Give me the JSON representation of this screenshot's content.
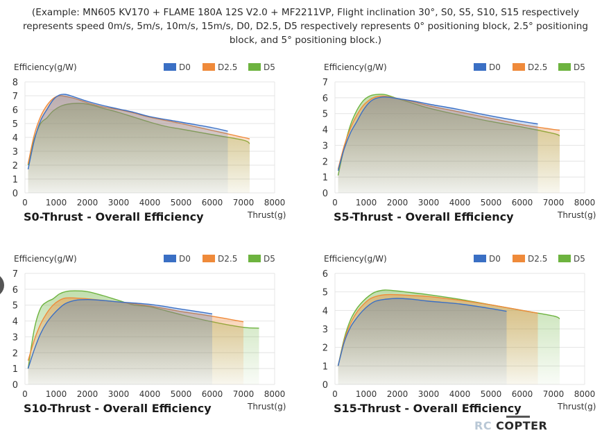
{
  "caption": "(Example: MN605 KV170 + FLAME 180A 12S V2.0 + MF2211VP, Flight inclination 30°, S0, S5, S10, S15 respectively represents speed 0m/s, 5m/s, 10m/s, 15m/s, D0, D2.5, D5 respectively represents 0° positioning block, 2.5° positioning block, and 5° positioning block.)",
  "colors": {
    "D0": "#3a6fc4",
    "D2.5": "#ef8a3a",
    "D5": "#6db33f",
    "grid": "#e4e4e4",
    "axis": "#888888"
  },
  "logo": {
    "rc": "RC",
    "copter": "COPTER"
  },
  "chart_data": [
    {
      "type": "area",
      "title": "S0-Thrust - Overall Efficiency",
      "ylabel": "Efficiency(g/W)",
      "xlabel": "Thrust(g)",
      "xlim": [
        0,
        8000
      ],
      "ylim": [
        0,
        8
      ],
      "xticks": [
        0,
        1000,
        2000,
        3000,
        4000,
        5000,
        6000,
        7000,
        8000
      ],
      "yticks": [
        0,
        1,
        2,
        3,
        4,
        5,
        6,
        7,
        8
      ],
      "legend": "top-right",
      "series": [
        {
          "name": "D0",
          "x": [
            100,
            300,
            500,
            700,
            900,
            1100,
            1300,
            1600,
            2000,
            2500,
            3000,
            3500,
            4000,
            5000,
            6000,
            6500
          ],
          "y": [
            1.7,
            3.8,
            5.2,
            6.0,
            6.7,
            7.05,
            7.1,
            6.9,
            6.6,
            6.3,
            6.05,
            5.8,
            5.5,
            5.1,
            4.7,
            4.45
          ]
        },
        {
          "name": "D2.5",
          "x": [
            100,
            300,
            500,
            700,
            900,
            1100,
            1300,
            1600,
            2000,
            2500,
            3000,
            3500,
            4000,
            5000,
            6000,
            7000,
            7200
          ],
          "y": [
            2.1,
            4.2,
            5.5,
            6.3,
            6.8,
            7.0,
            6.95,
            6.8,
            6.5,
            6.2,
            6.0,
            5.75,
            5.45,
            5.0,
            4.5,
            4.0,
            3.9
          ]
        },
        {
          "name": "D5",
          "x": [
            100,
            300,
            500,
            700,
            900,
            1200,
            1600,
            2000,
            2500,
            3000,
            3500,
            4000,
            4500,
            5000,
            6000,
            7000,
            7200
          ],
          "y": [
            2.0,
            3.9,
            5.0,
            5.4,
            5.9,
            6.3,
            6.45,
            6.4,
            6.1,
            5.8,
            5.45,
            5.1,
            4.8,
            4.6,
            4.2,
            3.8,
            3.55
          ]
        }
      ]
    },
    {
      "type": "area",
      "title": "S5-Thrust - Overall Efficiency",
      "ylabel": "Efficiency(g/W)",
      "xlabel": "Thrust(g)",
      "xlim": [
        0,
        8000
      ],
      "ylim": [
        0,
        7
      ],
      "xticks": [
        0,
        1000,
        2000,
        3000,
        4000,
        5000,
        6000,
        7000,
        8000
      ],
      "yticks": [
        0,
        1,
        2,
        3,
        4,
        5,
        6,
        7
      ],
      "legend": "top-right",
      "series": [
        {
          "name": "D0",
          "x": [
            100,
            300,
            500,
            700,
            900,
            1100,
            1300,
            1600,
            2000,
            2500,
            3000,
            4000,
            5000,
            6000,
            6500
          ],
          "y": [
            1.4,
            2.8,
            3.8,
            4.5,
            5.2,
            5.7,
            5.95,
            6.05,
            5.95,
            5.8,
            5.6,
            5.25,
            4.85,
            4.5,
            4.35
          ]
        },
        {
          "name": "D2.5",
          "x": [
            100,
            300,
            500,
            700,
            900,
            1100,
            1300,
            1600,
            2000,
            2500,
            3000,
            4000,
            5000,
            6000,
            7000,
            7200
          ],
          "y": [
            1.5,
            3.0,
            4.1,
            4.9,
            5.5,
            5.85,
            6.05,
            6.1,
            5.95,
            5.75,
            5.5,
            5.1,
            4.7,
            4.3,
            4.0,
            3.95
          ]
        },
        {
          "name": "D5",
          "x": [
            100,
            300,
            500,
            700,
            900,
            1100,
            1300,
            1600,
            2000,
            2500,
            3000,
            4000,
            5000,
            6000,
            7000,
            7200
          ],
          "y": [
            1.1,
            2.9,
            4.3,
            5.2,
            5.8,
            6.1,
            6.2,
            6.2,
            5.95,
            5.65,
            5.35,
            4.9,
            4.5,
            4.15,
            3.75,
            3.6
          ]
        }
      ]
    },
    {
      "type": "area",
      "title": "S10-Thrust - Overall Efficiency",
      "ylabel": "Efficiency(g/W)",
      "xlabel": "Thrust(g)",
      "xlim": [
        0,
        8000
      ],
      "ylim": [
        0,
        7
      ],
      "xticks": [
        0,
        1000,
        2000,
        3000,
        4000,
        5000,
        6000,
        7000,
        8000
      ],
      "yticks": [
        0,
        1,
        2,
        3,
        4,
        5,
        6,
        7
      ],
      "legend": "top-right",
      "series": [
        {
          "name": "D0",
          "x": [
            100,
            300,
            500,
            700,
            900,
            1100,
            1300,
            1600,
            2000,
            2500,
            3000,
            4000,
            5000,
            6000
          ],
          "y": [
            1.0,
            2.2,
            3.2,
            3.9,
            4.4,
            4.8,
            5.1,
            5.3,
            5.35,
            5.3,
            5.2,
            5.05,
            4.75,
            4.45
          ]
        },
        {
          "name": "D2.5",
          "x": [
            100,
            300,
            500,
            700,
            900,
            1100,
            1300,
            1600,
            2000,
            2500,
            3000,
            4000,
            5000,
            6000,
            7000
          ],
          "y": [
            1.5,
            2.8,
            3.8,
            4.5,
            5.0,
            5.3,
            5.45,
            5.45,
            5.4,
            5.3,
            5.2,
            4.95,
            4.6,
            4.3,
            3.95
          ]
        },
        {
          "name": "D5",
          "x": [
            100,
            300,
            500,
            700,
            900,
            1100,
            1300,
            1600,
            2000,
            2500,
            3000,
            3500,
            4000,
            5000,
            6000,
            7000,
            7500
          ],
          "y": [
            1.0,
            3.5,
            4.8,
            5.2,
            5.4,
            5.7,
            5.85,
            5.9,
            5.85,
            5.6,
            5.3,
            5.0,
            4.9,
            4.4,
            3.95,
            3.6,
            3.55
          ]
        }
      ]
    },
    {
      "type": "area",
      "title": "S15-Thrust - Overall Efficiency",
      "ylabel": "Efficiency(g/W)",
      "xlabel": "Thrust(g)",
      "xlim": [
        0,
        8000
      ],
      "ylim": [
        0,
        6
      ],
      "xticks": [
        0,
        1000,
        2000,
        3000,
        4000,
        5000,
        6000,
        7000,
        8000
      ],
      "yticks": [
        0,
        1,
        2,
        3,
        4,
        5,
        6
      ],
      "legend": "top-right",
      "series": [
        {
          "name": "D0",
          "x": [
            100,
            300,
            500,
            700,
            900,
            1100,
            1300,
            1600,
            2000,
            2500,
            3000,
            4000,
            5000,
            5500
          ],
          "y": [
            1.0,
            2.3,
            3.1,
            3.6,
            4.0,
            4.3,
            4.5,
            4.6,
            4.65,
            4.6,
            4.5,
            4.35,
            4.1,
            3.95
          ]
        },
        {
          "name": "D2.5",
          "x": [
            100,
            300,
            500,
            700,
            900,
            1100,
            1300,
            1600,
            2000,
            2500,
            3000,
            4000,
            5000,
            6000,
            6500
          ],
          "y": [
            1.0,
            2.4,
            3.3,
            3.9,
            4.3,
            4.6,
            4.75,
            4.85,
            4.85,
            4.8,
            4.75,
            4.55,
            4.3,
            4.0,
            3.85
          ]
        },
        {
          "name": "D5",
          "x": [
            100,
            300,
            500,
            700,
            900,
            1100,
            1300,
            1600,
            2000,
            2500,
            3000,
            4000,
            5000,
            6000,
            7000,
            7200
          ],
          "y": [
            1.0,
            2.5,
            3.5,
            4.1,
            4.5,
            4.8,
            5.0,
            5.1,
            5.05,
            4.95,
            4.85,
            4.6,
            4.3,
            4.0,
            3.7,
            3.55
          ]
        }
      ]
    }
  ]
}
